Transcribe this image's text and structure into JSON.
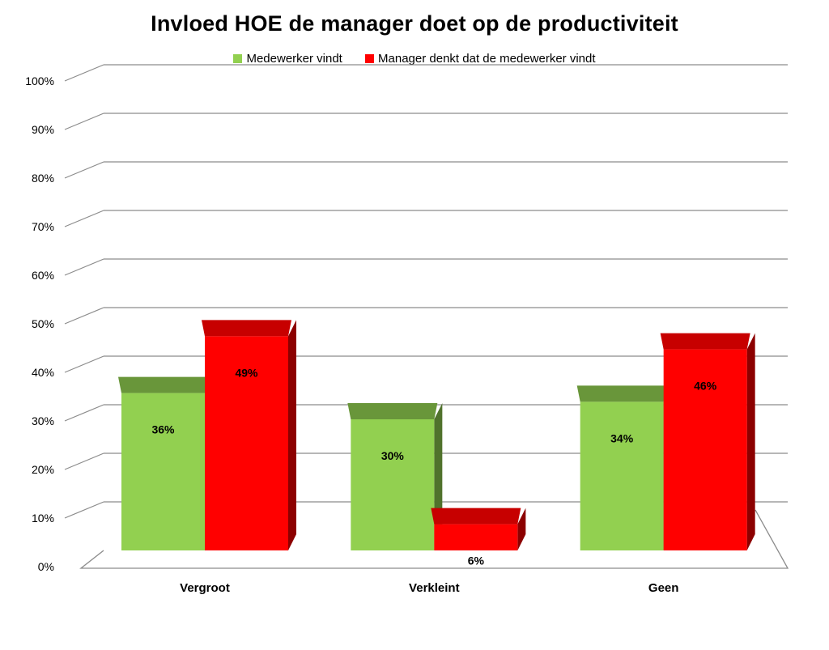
{
  "chart_data": {
    "type": "bar",
    "title": "Invloed HOE de manager doet op de productiviteit",
    "categories": [
      "Vergroot",
      "Verkleint",
      "Geen"
    ],
    "series": [
      {
        "name": "Medewerker vindt",
        "values": [
          36,
          30,
          34
        ],
        "labels": [
          "36%",
          "30%",
          "34%"
        ],
        "color": "#92d050"
      },
      {
        "name": "Manager denkt dat de medewerker vindt",
        "values": [
          49,
          6,
          46
        ],
        "labels": [
          "49%",
          "6%",
          "46%"
        ],
        "color": "#ff0000"
      }
    ],
    "ylim": [
      0,
      100
    ],
    "yticks": [
      "0%",
      "10%",
      "20%",
      "30%",
      "40%",
      "50%",
      "60%",
      "70%",
      "80%",
      "90%",
      "100%"
    ],
    "grid": true,
    "legend_position": "top",
    "style": "3d-clustered-column"
  }
}
